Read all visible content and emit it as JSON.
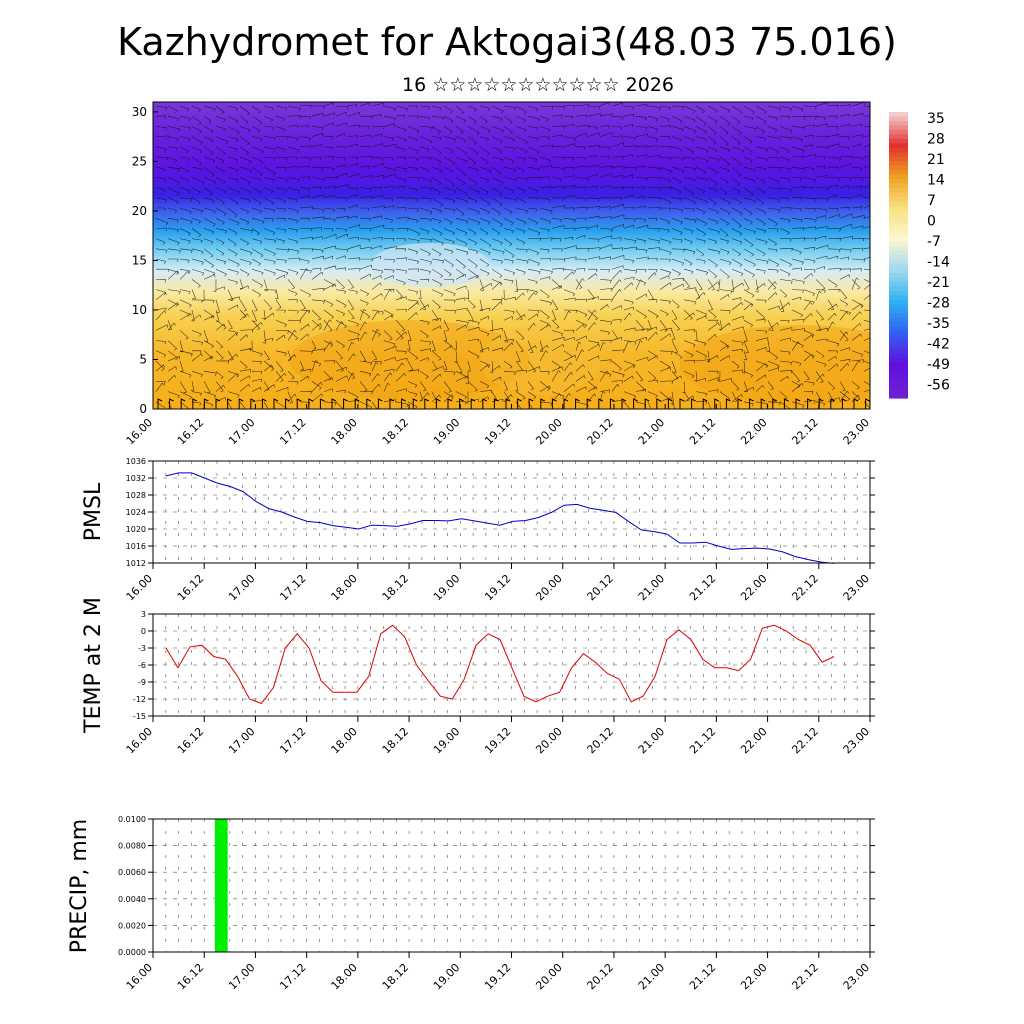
{
  "title": "Kazhydromet for Aktogai3(48.03 75.016)",
  "subtitle": "16 ☆☆☆☆☆☆☆☆☆☆☆ 2026",
  "chart_data": [
    {
      "type": "heatmap",
      "name": "temperature-wind cross-section",
      "x_ticks": [
        "16.00",
        "16.12",
        "17.00",
        "17.12",
        "18.00",
        "18.12",
        "19.00",
        "19.12",
        "20.00",
        "20.12",
        "21.00",
        "21.12",
        "22.00",
        "22.12",
        "23.00"
      ],
      "y_ticks": [
        "0",
        "5",
        "10",
        "15",
        "20",
        "25",
        "30"
      ],
      "ylim": [
        0,
        31
      ],
      "colorbar_labels": [
        "35",
        "28",
        "21",
        "14",
        "7",
        "0",
        "-7",
        "-14",
        "-21",
        "-28",
        "-35",
        "-42",
        "-49",
        "-56"
      ],
      "colorbar_colors": [
        "#f4cccc",
        "#e03030",
        "#f0a020",
        "#f8e080",
        "#fdf6d0",
        "#9fd8f0",
        "#30b0f0",
        "#3060f0",
        "#6010e0",
        "#7020d0"
      ]
    },
    {
      "type": "line",
      "name": "PMSL",
      "ylabel": "PMSL",
      "ylim": [
        1012,
        1036
      ],
      "y_ticks": [
        "1036",
        "1032",
        "1028",
        "1024",
        "1020",
        "1016",
        "1012"
      ],
      "x_ticks": [
        "16.00",
        "16.12",
        "17.00",
        "17.12",
        "18.00",
        "18.12",
        "19.00",
        "19.12",
        "20.00",
        "20.12",
        "21.00",
        "21.12",
        "22.00",
        "22.12",
        "23.00"
      ],
      "color": "#0000cc",
      "values": [
        1032.5,
        1033.2,
        1033.2,
        1032.0,
        1030.8,
        1030.0,
        1028.8,
        1026.5,
        1024.8,
        1024.0,
        1022.8,
        1021.8,
        1021.5,
        1020.8,
        1020.4,
        1020.0,
        1020.9,
        1020.8,
        1020.6,
        1021.2,
        1022.0,
        1022.0,
        1021.9,
        1022.4,
        1021.9,
        1021.4,
        1020.9,
        1021.8,
        1022.0,
        1022.7,
        1023.9,
        1025.6,
        1025.8,
        1024.9,
        1024.4,
        1023.9,
        1021.8,
        1019.8,
        1019.4,
        1018.8,
        1016.7,
        1016.7,
        1016.9,
        1016.0,
        1015.2,
        1015.4,
        1015.5,
        1015.3,
        1014.6,
        1013.5,
        1012.8,
        1012.2,
        1011.9
      ]
    },
    {
      "type": "line",
      "name": "TEMP at 2 M",
      "ylabel": "TEMP at 2 M",
      "ylim": [
        -15,
        3
      ],
      "y_ticks": [
        "3",
        "0",
        "-3",
        "-6",
        "-9",
        "-12",
        "-15"
      ],
      "x_ticks": [
        "16.00",
        "16.12",
        "17.00",
        "17.12",
        "18.00",
        "18.12",
        "19.00",
        "19.12",
        "20.00",
        "20.12",
        "21.00",
        "21.12",
        "22.00",
        "22.12",
        "23.00"
      ],
      "color": "#dd0000",
      "values": [
        -3.0,
        -6.5,
        -2.8,
        -2.5,
        -4.5,
        -5.0,
        -8.0,
        -12.0,
        -12.8,
        -10.0,
        -3.0,
        -0.5,
        -3.0,
        -8.8,
        -10.8,
        -10.8,
        -10.8,
        -8.0,
        -0.5,
        1.0,
        -1.0,
        -6.0,
        -8.8,
        -11.5,
        -12.0,
        -8.5,
        -2.5,
        -0.5,
        -1.5,
        -6.5,
        -11.5,
        -12.5,
        -11.5,
        -10.8,
        -6.5,
        -4.0,
        -5.5,
        -7.5,
        -8.5,
        -12.5,
        -11.5,
        -8.0,
        -1.5,
        0.2,
        -1.5,
        -5.0,
        -6.5,
        -6.5,
        -7.0,
        -5.0,
        0.5,
        1.0,
        0.0,
        -1.5,
        -2.5,
        -5.5,
        -4.5
      ]
    },
    {
      "type": "bar",
      "name": "PRECIP",
      "ylabel": "PRECIP, mm",
      "ylim": [
        0,
        0.01
      ],
      "y_ticks": [
        "0.0100",
        "0.0080",
        "0.0060",
        "0.0040",
        "0.0020",
        "0.0000"
      ],
      "x_ticks": [
        "16.00",
        "16.12",
        "17.00",
        "17.12",
        "18.00",
        "18.12",
        "19.00",
        "19.12",
        "20.00",
        "20.12",
        "21.00",
        "21.12",
        "22.00",
        "22.12",
        "23.00"
      ],
      "color": "#00ee00",
      "bars": [
        {
          "x_hours": 16,
          "width_hours": 3,
          "value": 0.01
        }
      ]
    }
  ]
}
